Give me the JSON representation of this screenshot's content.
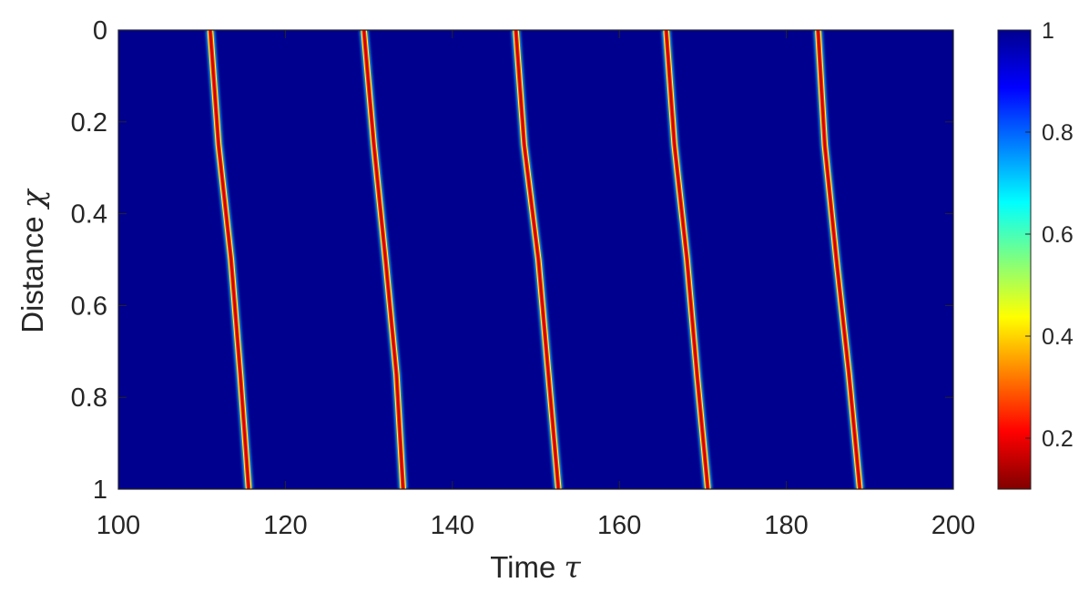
{
  "chart_data": {
    "type": "heatmap",
    "title": "",
    "xlabel": "Time",
    "xlabel_symbol": "τ",
    "ylabel": "Distance",
    "ylabel_symbol": "χ",
    "xlim": [
      100,
      200
    ],
    "ylim": [
      0,
      1
    ],
    "y_reversed": true,
    "x_ticks": [
      "100",
      "120",
      "140",
      "160",
      "180",
      "200"
    ],
    "y_ticks": [
      "0",
      "0.2",
      "0.4",
      "0.6",
      "0.8",
      "1"
    ],
    "colorbar": {
      "colormap": "jet",
      "range": [
        0.1,
        1
      ],
      "ticks": [
        "0.2",
        "0.4",
        "0.6",
        "0.8",
        "1"
      ],
      "placement": "right"
    },
    "background_value": 1.0,
    "minimum_value": 0.1,
    "fronts": [
      {
        "path": [
          [
            0,
            111.0
          ],
          [
            0.25,
            112.0
          ],
          [
            0.5,
            113.5
          ],
          [
            0.75,
            114.6
          ],
          [
            1,
            115.6
          ]
        ]
      },
      {
        "path": [
          [
            0,
            129.4
          ],
          [
            0.25,
            130.6
          ],
          [
            0.5,
            132.0
          ],
          [
            0.75,
            133.3
          ],
          [
            1,
            134.1
          ]
        ]
      },
      {
        "path": [
          [
            0,
            147.6
          ],
          [
            0.25,
            148.6
          ],
          [
            0.5,
            150.3
          ],
          [
            0.75,
            151.5
          ],
          [
            1,
            152.7
          ]
        ]
      },
      {
        "path": [
          [
            0,
            165.6
          ],
          [
            0.25,
            166.6
          ],
          [
            0.5,
            168.1
          ],
          [
            0.75,
            169.3
          ],
          [
            1,
            170.6
          ]
        ]
      },
      {
        "path": [
          [
            0,
            183.8
          ],
          [
            0.25,
            184.6
          ],
          [
            0.5,
            186.0
          ],
          [
            0.75,
            187.5
          ],
          [
            1,
            188.8
          ]
        ]
      }
    ]
  }
}
